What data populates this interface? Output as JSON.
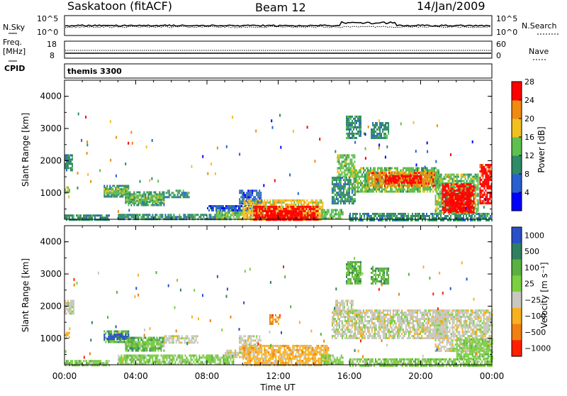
{
  "header": {
    "station": "Saskatoon (fitACF)",
    "beam": "Beam 12",
    "date": "14/Jan/2009"
  },
  "strip_nsky": {
    "left_label": "N.Sky",
    "right_label": "N.Search",
    "left_ticks": [
      "10^5",
      "10^0"
    ],
    "right_ticks": [
      "10^5",
      "10^0"
    ]
  },
  "strip_freq": {
    "left_label_1": "Freq.",
    "left_label_2": "[MHz]",
    "right_label": "Nave",
    "left_ticks": [
      "18",
      "8"
    ],
    "right_ticks": [
      "60",
      "0"
    ]
  },
  "cpid": {
    "label": "CPID",
    "program": "themis 3300"
  },
  "chart_data": [
    {
      "type": "heatmap",
      "name": "power",
      "ylabel": "Slant Range [km]",
      "yticks": [
        1000,
        2000,
        3000,
        4000
      ],
      "ylim": [
        180,
        4500
      ],
      "xlim": [
        0,
        24
      ],
      "xticks": [
        0,
        4,
        8,
        12,
        16,
        20,
        24
      ],
      "colorbar": {
        "label": "Power [dB]",
        "ticks": [
          "4",
          "8",
          "12",
          "16",
          "20",
          "24",
          "28"
        ],
        "colors": [
          "#0000ff",
          "#2a5fd0",
          "#2f8a66",
          "#5fc050",
          "#f0c020",
          "#f08a10",
          "#ff0000"
        ]
      },
      "regions": [
        {
          "t0": 0.0,
          "t1": 0.4,
          "r0": 1700,
          "r1": 2200,
          "level": 2
        },
        {
          "t0": 0.0,
          "t1": 0.3,
          "r0": 1050,
          "r1": 1200,
          "level": 3
        },
        {
          "t0": 0.0,
          "t1": 2.5,
          "r0": 180,
          "r1": 330,
          "level": 2
        },
        {
          "t0": 2.2,
          "t1": 3.6,
          "r0": 900,
          "r1": 1250,
          "level": 2
        },
        {
          "t0": 2.2,
          "t1": 3.6,
          "r0": 1000,
          "r1": 1150,
          "level": 3
        },
        {
          "t0": 3.4,
          "t1": 5.6,
          "r0": 650,
          "r1": 1050,
          "level": 2
        },
        {
          "t0": 3.4,
          "t1": 5.6,
          "r0": 750,
          "r1": 950,
          "level": 3
        },
        {
          "t0": 5.6,
          "t1": 7.0,
          "r0": 900,
          "r1": 1100,
          "level": 2
        },
        {
          "t0": 3.0,
          "t1": 8.5,
          "r0": 180,
          "r1": 350,
          "level": 2
        },
        {
          "t0": 8.5,
          "t1": 10.0,
          "r0": 180,
          "r1": 480,
          "level": 3
        },
        {
          "t0": 8.0,
          "t1": 10.5,
          "r0": 450,
          "r1": 620,
          "level": 1
        },
        {
          "t0": 9.8,
          "t1": 11.0,
          "r0": 700,
          "r1": 1100,
          "level": 1
        },
        {
          "t0": 10.0,
          "t1": 14.5,
          "r0": 180,
          "r1": 800,
          "level": 4
        },
        {
          "t0": 10.6,
          "t1": 14.2,
          "r0": 200,
          "r1": 600,
          "level": 6
        },
        {
          "t0": 11.3,
          "t1": 13.3,
          "r0": 190,
          "r1": 460,
          "level": 7
        },
        {
          "t0": 14.4,
          "t1": 15.6,
          "r0": 200,
          "r1": 500,
          "level": 3
        },
        {
          "t0": 15.3,
          "t1": 16.3,
          "r0": 1500,
          "r1": 2200,
          "level": 3
        },
        {
          "t0": 15.0,
          "t1": 16.3,
          "r0": 700,
          "r1": 1500,
          "level": 2
        },
        {
          "t0": 16.2,
          "t1": 21.0,
          "r0": 1050,
          "r1": 1800,
          "level": 3
        },
        {
          "t0": 17.0,
          "t1": 20.8,
          "r0": 1200,
          "r1": 1650,
          "level": 5
        },
        {
          "t0": 18.0,
          "t1": 20.0,
          "r0": 1300,
          "r1": 1550,
          "level": 6
        },
        {
          "t0": 16.0,
          "t1": 24.0,
          "r0": 180,
          "r1": 380,
          "level": 2
        },
        {
          "t0": 20.8,
          "t1": 23.2,
          "r0": 350,
          "r1": 1600,
          "level": 3
        },
        {
          "t0": 21.2,
          "t1": 23.0,
          "r0": 400,
          "r1": 1300,
          "level": 6
        },
        {
          "t0": 21.6,
          "t1": 22.8,
          "r0": 450,
          "r1": 1000,
          "level": 7
        },
        {
          "t0": 23.3,
          "t1": 24.0,
          "r0": 700,
          "r1": 1900,
          "level": 6
        },
        {
          "t0": 15.8,
          "t1": 16.6,
          "r0": 2700,
          "r1": 3400,
          "level": 2
        },
        {
          "t0": 17.2,
          "t1": 18.2,
          "r0": 2700,
          "r1": 3200,
          "level": 2
        }
      ]
    },
    {
      "type": "heatmap",
      "name": "velocity",
      "ylabel": "Slant Range [km]",
      "yticks": [
        1000,
        2000,
        3000,
        4000
      ],
      "ylim": [
        180,
        4500
      ],
      "xlim": [
        0,
        24
      ],
      "xticks": [
        0,
        4,
        8,
        12,
        16,
        20,
        24
      ],
      "xticklabels": [
        "00:00",
        "04:00",
        "08:00",
        "12:00",
        "16:00",
        "20:00",
        "00:00"
      ],
      "xlabel": "Time UT",
      "colorbar": {
        "label": "Velocity [m s⁻¹]",
        "ticks": [
          "1000",
          "500",
          "100",
          "25",
          "−25",
          "−100",
          "−500",
          "−1000"
        ],
        "colors": [
          "#2a4fc8",
          "#2f8060",
          "#5ab040",
          "#7ad040",
          "#c8c8c0",
          "#f8b020",
          "#f08010",
          "#ff2000"
        ]
      },
      "regions": [
        {
          "t0": 0.0,
          "t1": 0.5,
          "r0": 1750,
          "r1": 2200,
          "level": 4
        },
        {
          "t0": 0.0,
          "t1": 0.3,
          "r0": 1050,
          "r1": 1200,
          "level": 5
        },
        {
          "t0": 0.0,
          "t1": 2.5,
          "r0": 180,
          "r1": 330,
          "level": 3
        },
        {
          "t0": 2.2,
          "t1": 3.6,
          "r0": 900,
          "r1": 1250,
          "level": 2
        },
        {
          "t0": 2.2,
          "t1": 3.6,
          "r0": 1000,
          "r1": 1150,
          "level": 0
        },
        {
          "t0": 3.4,
          "t1": 5.6,
          "r0": 650,
          "r1": 1050,
          "level": 2
        },
        {
          "t0": 3.4,
          "t1": 5.6,
          "r0": 780,
          "r1": 920,
          "level": 3
        },
        {
          "t0": 5.6,
          "t1": 7.5,
          "r0": 900,
          "r1": 1100,
          "level": 4
        },
        {
          "t0": 3.0,
          "t1": 9.5,
          "r0": 180,
          "r1": 500,
          "level": 3
        },
        {
          "t0": 9.0,
          "t1": 10.5,
          "r0": 400,
          "r1": 650,
          "level": 4
        },
        {
          "t0": 9.8,
          "t1": 11.0,
          "r0": 700,
          "r1": 1100,
          "level": 4
        },
        {
          "t0": 10.0,
          "t1": 14.8,
          "r0": 180,
          "r1": 800,
          "level": 5
        },
        {
          "t0": 11.5,
          "t1": 12.1,
          "r0": 1450,
          "r1": 1750,
          "level": 6
        },
        {
          "t0": 14.4,
          "t1": 15.6,
          "r0": 200,
          "r1": 500,
          "level": 3
        },
        {
          "t0": 15.0,
          "t1": 21.5,
          "r0": 1000,
          "r1": 1900,
          "level": 4
        },
        {
          "t0": 15.2,
          "t1": 16.2,
          "r0": 1800,
          "r1": 2200,
          "level": 4
        },
        {
          "t0": 20.8,
          "t1": 24.0,
          "r0": 600,
          "r1": 1900,
          "level": 4
        },
        {
          "t0": 22.0,
          "t1": 24.0,
          "r0": 350,
          "r1": 1000,
          "level": 3
        },
        {
          "t0": 16.0,
          "t1": 24.0,
          "r0": 180,
          "r1": 380,
          "level": 3
        },
        {
          "t0": 15.8,
          "t1": 16.6,
          "r0": 2700,
          "r1": 3400,
          "level": 2
        },
        {
          "t0": 17.2,
          "t1": 18.2,
          "r0": 2700,
          "r1": 3200,
          "level": 2
        }
      ]
    }
  ]
}
